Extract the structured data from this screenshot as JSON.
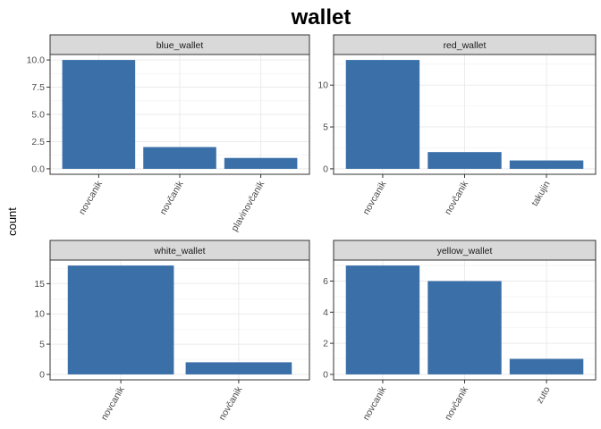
{
  "chart_data": {
    "type": "bar",
    "title": "wallet",
    "ylabel": "count",
    "xlabel": "",
    "bar_color": "#3A6FA8",
    "strip_fill": "#D9D9D9",
    "grid": true,
    "facets": [
      {
        "label": "blue_wallet",
        "categories": [
          "novcanik",
          "novčanik",
          "plavinovčanik"
        ],
        "values": [
          10,
          2,
          1
        ],
        "ylim": [
          -0.5,
          10.5
        ],
        "yticks": [
          "0.0",
          "2.5",
          "5.0",
          "7.5",
          "10.0"
        ],
        "ytick_values": [
          0,
          2.5,
          5,
          7.5,
          10
        ]
      },
      {
        "label": "red_wallet",
        "categories": [
          "novcanik",
          "novčanik",
          "takujin"
        ],
        "values": [
          13,
          2,
          1
        ],
        "ylim": [
          -0.65,
          13.65
        ],
        "yticks": [
          "0",
          "5",
          "10"
        ],
        "ytick_values": [
          0,
          5,
          10
        ]
      },
      {
        "label": "white_wallet",
        "categories": [
          "novcanik",
          "novčanik"
        ],
        "values": [
          18,
          2
        ],
        "ylim": [
          -0.9,
          18.9
        ],
        "yticks": [
          "0",
          "5",
          "10",
          "15"
        ],
        "ytick_values": [
          0,
          5,
          10,
          15
        ]
      },
      {
        "label": "yellow_wallet",
        "categories": [
          "novcanik",
          "novčanik",
          "zuto"
        ],
        "values": [
          7,
          6,
          1
        ],
        "ylim": [
          -0.35,
          7.35
        ],
        "yticks": [
          "0",
          "2",
          "4",
          "6"
        ],
        "ytick_values": [
          0,
          2,
          4,
          6
        ]
      }
    ]
  }
}
